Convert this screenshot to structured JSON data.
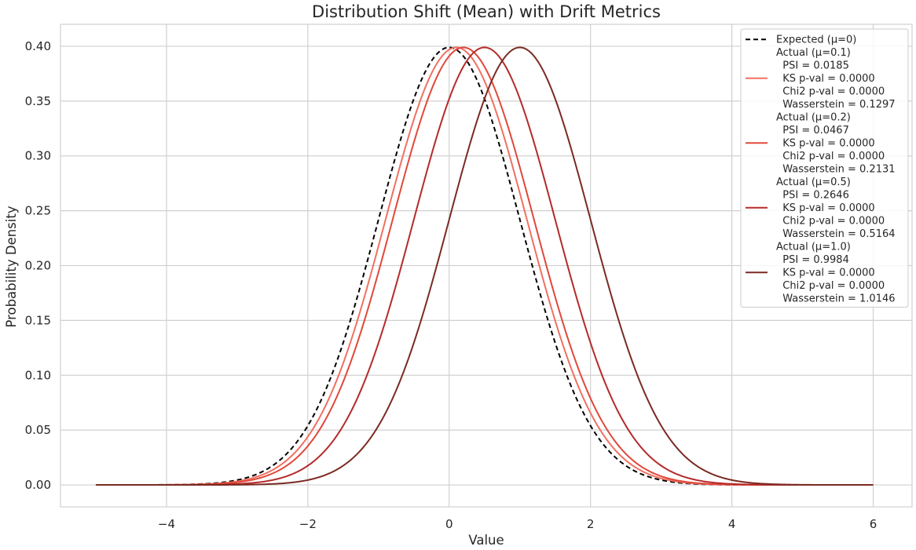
{
  "chart_data": {
    "type": "line",
    "title": "Distribution Shift (Mean) with Drift Metrics",
    "xlabel": "Value",
    "ylabel": "Probability Density",
    "xlim": [
      -5.5,
      6.55
    ],
    "ylim": [
      -0.02,
      0.42
    ],
    "x_range": [
      -5,
      6
    ],
    "xticks": [
      -4,
      -2,
      0,
      2,
      4,
      6
    ],
    "xtick_labels": [
      "−4",
      "−2",
      "0",
      "2",
      "4",
      "6"
    ],
    "yticks": [
      0.0,
      0.05,
      0.1,
      0.15,
      0.2,
      0.25,
      0.3,
      0.35,
      0.4
    ],
    "ytick_labels": [
      "0.00",
      "0.05",
      "0.10",
      "0.15",
      "0.20",
      "0.25",
      "0.30",
      "0.35",
      "0.40"
    ],
    "grid": true,
    "legend_position": "top-right",
    "series": [
      {
        "name": "Expected (μ=0)",
        "distribution": "normal",
        "mu": 0,
        "sigma": 1,
        "color": "#000000",
        "dashed": true,
        "legend_lines": [
          "Expected (μ=0)"
        ]
      },
      {
        "name": "Actual (μ=0.1)",
        "distribution": "normal",
        "mu": 0.1,
        "sigma": 1,
        "color": "#f07060",
        "dashed": false,
        "legend_lines": [
          "Actual (μ=0.1)",
          "  PSI = 0.0185",
          "  KS p-val = 0.0000",
          "  Chi2 p-val = 0.0000",
          "  Wasserstein = 0.1297"
        ]
      },
      {
        "name": "Actual (μ=0.2)",
        "distribution": "normal",
        "mu": 0.2,
        "sigma": 1,
        "color": "#e0483a",
        "dashed": false,
        "legend_lines": [
          "Actual (μ=0.2)",
          "  PSI = 0.0467",
          "  KS p-val = 0.0000",
          "  Chi2 p-val = 0.0000",
          "  Wasserstein = 0.2131"
        ]
      },
      {
        "name": "Actual (μ=0.5)",
        "distribution": "normal",
        "mu": 0.5,
        "sigma": 1,
        "color": "#b52a2a",
        "dashed": false,
        "legend_lines": [
          "Actual (μ=0.5)",
          "  PSI = 0.2646",
          "  KS p-val = 0.0000",
          "  Chi2 p-val = 0.0000",
          "  Wasserstein = 0.5164"
        ]
      },
      {
        "name": "Actual (μ=1.0)",
        "distribution": "normal",
        "mu": 1.0,
        "sigma": 1,
        "color": "#7a2b22",
        "dashed": false,
        "legend_lines": [
          "Actual (μ=1.0)",
          "  PSI = 0.9984",
          "  KS p-val = 0.0000",
          "  Chi2 p-val = 0.0000",
          "  Wasserstein = 1.0146"
        ]
      }
    ]
  }
}
